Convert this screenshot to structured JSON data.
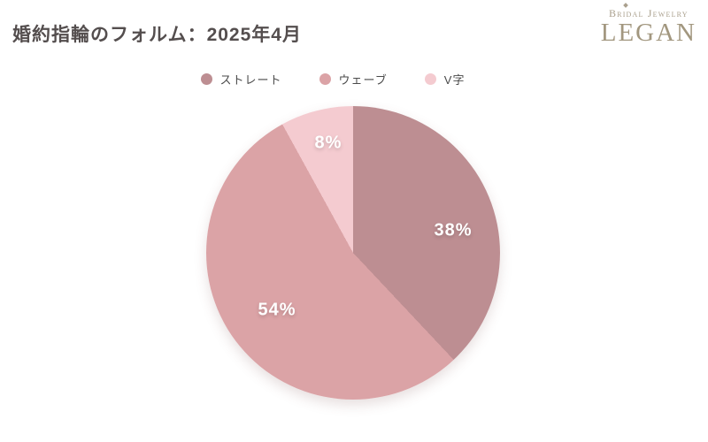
{
  "title": "婚約指輪のフォルム：2025年4月",
  "logo": {
    "tagline": "Bridal Jewelry",
    "brand": "LEGAN"
  },
  "chart_data": {
    "type": "pie",
    "title": "婚約指輪のフォルム：2025年4月",
    "unit": "%",
    "direction": "clockwise",
    "start_angle_deg": 0,
    "legend_position": "top",
    "background": "#ffffff",
    "label_color": "#ffffff",
    "segments": [
      {
        "label": "ストレート",
        "value": 38,
        "display": "38%",
        "color": "#bd8e92"
      },
      {
        "label": "ウェーブ",
        "value": 54,
        "display": "54%",
        "color": "#dba3a6"
      },
      {
        "label": "V字",
        "value": 8,
        "display": "8%",
        "color": "#f4cbd0"
      }
    ]
  }
}
